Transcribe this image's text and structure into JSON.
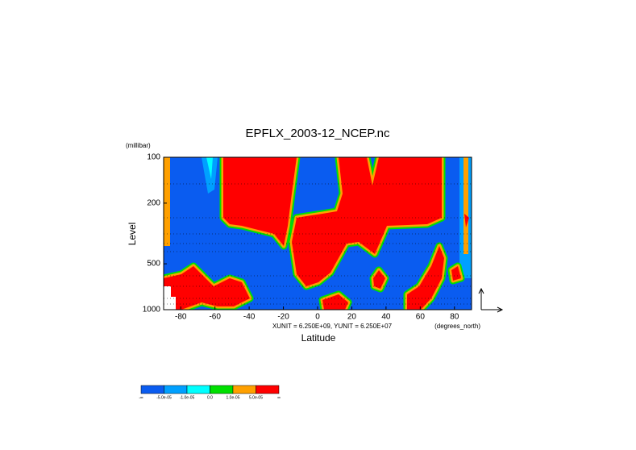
{
  "chart_data": {
    "type": "contour",
    "title": "EPFLX_2003-12_NCEP.nc",
    "y_unit": "(millibar)",
    "y_label": "Level",
    "x_label": "Latitude",
    "x_unit": "(degrees_north)",
    "annotation": "XUNIT = 6.250E+09, YUNIT = 6.250E+07",
    "xlim": [
      -90,
      90
    ],
    "xticks": [
      -80,
      -60,
      -40,
      -20,
      0,
      20,
      40,
      60,
      80
    ],
    "ylim": [
      1000,
      100
    ],
    "yticks": [
      100,
      200,
      500,
      1000
    ],
    "log_y": true,
    "colorbar": {
      "colors": [
        "#0a5cf0",
        "#00a0ff",
        "#00ffff",
        "#00e000",
        "#ffa000",
        "#ff0000"
      ],
      "labels": [
        "-∞",
        "-5.0e-05",
        "-1.0e-05",
        "0.0",
        "1.0e-05",
        "5.0e-05",
        "∞"
      ]
    }
  }
}
